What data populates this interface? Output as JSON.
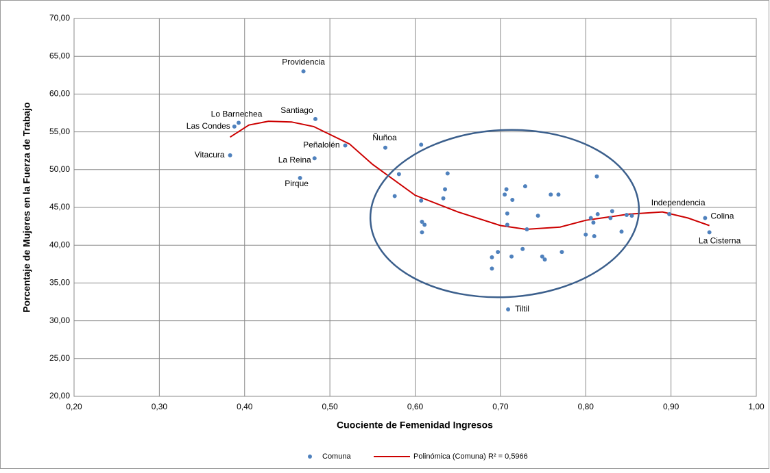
{
  "chart_data": {
    "type": "scatter",
    "xlabel": "Cuociente de Femenidad Ingresos",
    "ylabel": "Porcentaje de Mujeres en la Fuerza de Trabajo",
    "xlim": [
      0.2,
      1.0
    ],
    "xticks": [
      {
        "value": 0.2,
        "label": "0,20"
      },
      {
        "value": 0.3,
        "label": "0,30"
      },
      {
        "value": 0.4,
        "label": "0,40"
      },
      {
        "value": 0.5,
        "label": "0,50"
      },
      {
        "value": 0.6,
        "label": "0,60"
      },
      {
        "value": 0.7,
        "label": "0,70"
      },
      {
        "value": 0.8,
        "label": "0,80"
      },
      {
        "value": 0.9,
        "label": "0,90"
      },
      {
        "value": 1.0,
        "label": "1,00"
      }
    ],
    "ylim": [
      20,
      70
    ],
    "yticks": [
      {
        "value": 20,
        "label": "20,00"
      },
      {
        "value": 25,
        "label": "25,00"
      },
      {
        "value": 30,
        "label": "30,00"
      },
      {
        "value": 35,
        "label": "35,00"
      },
      {
        "value": 40,
        "label": "40,00"
      },
      {
        "value": 45,
        "label": "45,00"
      },
      {
        "value": 50,
        "label": "50,00"
      },
      {
        "value": 55,
        "label": "55,00"
      },
      {
        "value": 60,
        "label": "60,00"
      },
      {
        "value": 65,
        "label": "65,00"
      },
      {
        "value": 70,
        "label": "70,00"
      }
    ],
    "grid": true,
    "x": [
      0.469,
      0.483,
      0.393,
      0.388,
      0.383,
      0.518,
      0.482,
      0.465,
      0.565,
      0.709,
      0.898,
      0.94,
      0.945,
      0.607,
      0.581,
      0.576,
      0.638,
      0.607,
      0.635,
      0.633,
      0.608,
      0.611,
      0.608,
      0.707,
      0.729,
      0.705,
      0.714,
      0.759,
      0.768,
      0.813,
      0.708,
      0.744,
      0.708,
      0.731,
      0.806,
      0.814,
      0.809,
      0.829,
      0.831,
      0.848,
      0.854,
      0.8,
      0.81,
      0.842,
      0.726,
      0.697,
      0.713,
      0.69,
      0.749,
      0.752,
      0.772,
      0.69
    ],
    "series": [
      {
        "name": "Comuna",
        "color": "#4f81bd",
        "values": [
          63.0,
          56.7,
          56.2,
          55.7,
          51.9,
          53.2,
          51.5,
          48.9,
          52.9,
          31.5,
          44.1,
          43.6,
          41.7,
          53.3,
          49.4,
          46.5,
          49.5,
          45.9,
          47.4,
          46.2,
          43.1,
          42.7,
          41.7,
          47.4,
          47.8,
          46.7,
          46.0,
          46.7,
          46.7,
          49.1,
          44.2,
          43.9,
          42.7,
          42.1,
          43.6,
          44.1,
          43.0,
          43.6,
          44.5,
          44.0,
          43.9,
          41.4,
          41.2,
          41.8,
          39.5,
          39.1,
          38.5,
          38.4,
          38.5,
          38.1,
          39.1,
          36.9
        ]
      }
    ],
    "point_labels": [
      "Providencia",
      "Santiago",
      "Lo Barnechea",
      "Las Condes",
      "Vitacura",
      "Peñalolén",
      "La Reina",
      "Pirque",
      "Ñuñoa",
      "Tiltil",
      "Independencia",
      "Colina",
      "La Cisterna",
      null,
      null,
      null,
      null,
      null,
      null,
      null,
      null,
      null,
      null,
      null,
      null,
      null,
      null,
      null,
      null,
      null,
      null,
      null,
      null,
      null,
      null,
      null,
      null,
      null,
      null,
      null,
      null,
      null,
      null,
      null,
      null,
      null,
      null,
      null,
      null,
      null,
      null,
      null
    ],
    "trendline": {
      "name": "Polinómica (Comuna)",
      "r2_label": "R² = 0,5966",
      "color": "#cc0000",
      "x": [
        0.383,
        0.405,
        0.428,
        0.455,
        0.481,
        0.523,
        0.55,
        0.6,
        0.65,
        0.7,
        0.73,
        0.77,
        0.8,
        0.85,
        0.89,
        0.92,
        0.945
      ],
      "values": [
        54.3,
        55.9,
        56.4,
        56.3,
        55.7,
        53.4,
        50.7,
        46.6,
        44.4,
        42.6,
        42.1,
        42.4,
        43.3,
        44.1,
        44.4,
        43.6,
        42.6
      ]
    }
  }
}
